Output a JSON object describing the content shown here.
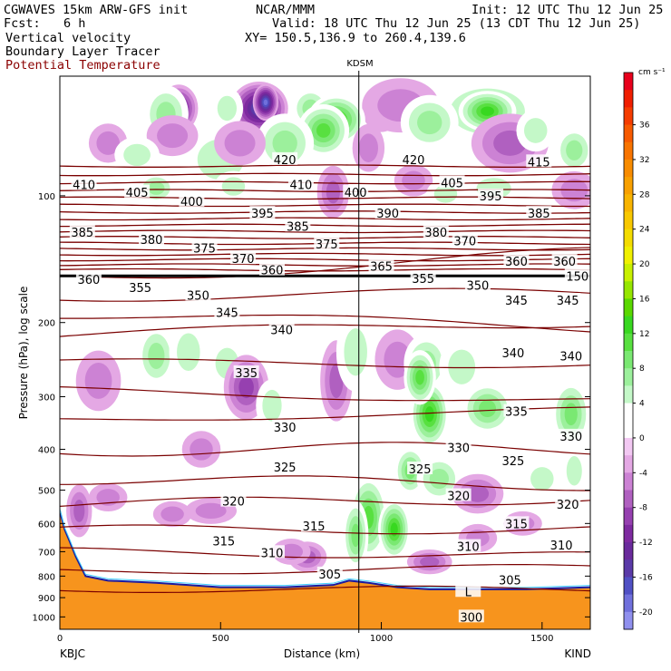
{
  "header": {
    "model": "CGWAVES 15km ARW-GFS init",
    "org": "NCAR/MMM",
    "init": "Init: 12 UTC Thu 12 Jun 25",
    "fcst_label": "Fcst:",
    "fcst_value": "6 h",
    "valid": "Valid: 18 UTC Thu 12 Jun 25 (13 CDT Thu 12 Jun 25)",
    "field1": "Vertical velocity",
    "field2": "Boundary Layer Tracer",
    "field3": "Potential Temperature",
    "xy": "XY= 150.5,136.9 to 260.4,139.6"
  },
  "colors": {
    "theta": "#7a0000",
    "terrain": "#f7941d",
    "tropopause": "#000000"
  },
  "chart_data": {
    "type": "heatmap",
    "title": "KDSM",
    "xlabel": "Distance (km)",
    "ylabel": "Pressure (hPa), log scale",
    "xlim": [
      0,
      1650
    ],
    "x_ticks": [
      "0",
      "500",
      "1000",
      "1500"
    ],
    "y_ticks": [
      "100",
      "200",
      "300",
      "400",
      "500",
      "600",
      "700",
      "800",
      "900",
      "1000"
    ],
    "y_tick_values": [
      100,
      200,
      300,
      400,
      500,
      600,
      700,
      800,
      900,
      1000
    ],
    "y_scale": "log",
    "left_station": "KBJC",
    "right_station": "KIND",
    "station_marker_km": 930,
    "colorbar": {
      "units": "cm s⁻¹",
      "labels": [
        "36",
        "32",
        "28",
        "24",
        "20",
        "16",
        "12",
        "8",
        "4",
        "0",
        "-4",
        "-8",
        "-12",
        "-16",
        "-20"
      ],
      "label_values": [
        36,
        32,
        28,
        24,
        20,
        16,
        12,
        8,
        4,
        0,
        -4,
        -8,
        -12,
        -16,
        -20
      ],
      "levels": [
        40,
        38,
        36,
        34,
        32,
        30,
        28,
        26,
        24,
        22,
        20,
        18,
        16,
        14,
        12,
        10,
        8,
        6,
        4,
        2,
        0,
        -2,
        -4,
        -6,
        -8,
        -10,
        -12,
        -14,
        -16,
        -18,
        -20,
        -22
      ],
      "colors": [
        "#e8001c",
        "#f01e00",
        "#f53c00",
        "#f75a00",
        "#f87400",
        "#f88c00",
        "#f8a000",
        "#f8b400",
        "#f8c800",
        "#f4dc00",
        "#f0f000",
        "#c8f000",
        "#96e600",
        "#5ad800",
        "#38d820",
        "#58e040",
        "#7ae872",
        "#9cf09c",
        "#c4f8c8",
        "#ffffff",
        "#ffffff",
        "#f2c8f2",
        "#e4a8e4",
        "#cc82d4",
        "#b060c0",
        "#9640b0",
        "#7e2aa0",
        "#6a2a9c",
        "#5a3aa8",
        "#5050c4",
        "#7070dc",
        "#9090ee"
      ]
    },
    "theta_labels": [
      {
        "text": "420",
        "x": 700,
        "p": 82
      },
      {
        "text": "420",
        "x": 1100,
        "p": 82
      },
      {
        "text": "415",
        "x": 1490,
        "p": 83
      },
      {
        "text": "410",
        "x": 75,
        "p": 94
      },
      {
        "text": "410",
        "x": 750,
        "p": 94
      },
      {
        "text": "405",
        "x": 240,
        "p": 98
      },
      {
        "text": "405",
        "x": 1220,
        "p": 93
      },
      {
        "text": "400",
        "x": 410,
        "p": 103
      },
      {
        "text": "400",
        "x": 920,
        "p": 98
      },
      {
        "text": "395",
        "x": 630,
        "p": 110
      },
      {
        "text": "395",
        "x": 1340,
        "p": 100
      },
      {
        "text": "390",
        "x": 1020,
        "p": 110
      },
      {
        "text": "385",
        "x": 70,
        "p": 122
      },
      {
        "text": "385",
        "x": 740,
        "p": 118
      },
      {
        "text": "385",
        "x": 1490,
        "p": 110
      },
      {
        "text": "380",
        "x": 285,
        "p": 127
      },
      {
        "text": "380",
        "x": 1170,
        "p": 122
      },
      {
        "text": "375",
        "x": 450,
        "p": 133
      },
      {
        "text": "375",
        "x": 830,
        "p": 130
      },
      {
        "text": "370",
        "x": 570,
        "p": 141
      },
      {
        "text": "370",
        "x": 1260,
        "p": 128
      },
      {
        "text": "365",
        "x": 1000,
        "p": 147
      },
      {
        "text": "360",
        "x": 660,
        "p": 150
      },
      {
        "text": "360",
        "x": 1420,
        "p": 143
      },
      {
        "text": "360",
        "x": 1570,
        "p": 143
      },
      {
        "text": "360",
        "x": 90,
        "p": 158
      },
      {
        "text": "355",
        "x": 250,
        "p": 165
      },
      {
        "text": "355",
        "x": 1130,
        "p": 157
      },
      {
        "text": "350",
        "x": 430,
        "p": 172
      },
      {
        "text": "350",
        "x": 1300,
        "p": 163
      },
      {
        "text": "345",
        "x": 520,
        "p": 189
      },
      {
        "text": "345",
        "x": 1420,
        "p": 177
      },
      {
        "text": "345",
        "x": 1580,
        "p": 177
      },
      {
        "text": "340",
        "x": 690,
        "p": 208
      },
      {
        "text": "340",
        "x": 1410,
        "p": 236
      },
      {
        "text": "340",
        "x": 1590,
        "p": 240
      },
      {
        "text": "335",
        "x": 580,
        "p": 263
      },
      {
        "text": "335",
        "x": 1420,
        "p": 325
      },
      {
        "text": "330",
        "x": 700,
        "p": 354
      },
      {
        "text": "330",
        "x": 1240,
        "p": 396
      },
      {
        "text": "330",
        "x": 1590,
        "p": 372
      },
      {
        "text": "325",
        "x": 700,
        "p": 440
      },
      {
        "text": "325",
        "x": 1120,
        "p": 445
      },
      {
        "text": "325",
        "x": 1410,
        "p": 425
      },
      {
        "text": "320",
        "x": 540,
        "p": 531
      },
      {
        "text": "320",
        "x": 1240,
        "p": 515
      },
      {
        "text": "320",
        "x": 1580,
        "p": 540
      },
      {
        "text": "315",
        "x": 510,
        "p": 660
      },
      {
        "text": "315",
        "x": 790,
        "p": 608
      },
      {
        "text": "315",
        "x": 1420,
        "p": 600
      },
      {
        "text": "310",
        "x": 660,
        "p": 703
      },
      {
        "text": "310",
        "x": 1270,
        "p": 680
      },
      {
        "text": "310",
        "x": 1560,
        "p": 675
      },
      {
        "text": "305",
        "x": 840,
        "p": 790
      },
      {
        "text": "305",
        "x": 1400,
        "p": 817
      },
      {
        "text": "150",
        "x": 1610,
        "p": 155
      },
      {
        "text": "L",
        "x": 1270,
        "p": 870
      },
      {
        "text": "300",
        "x": 1280,
        "p": 1000
      }
    ]
  }
}
